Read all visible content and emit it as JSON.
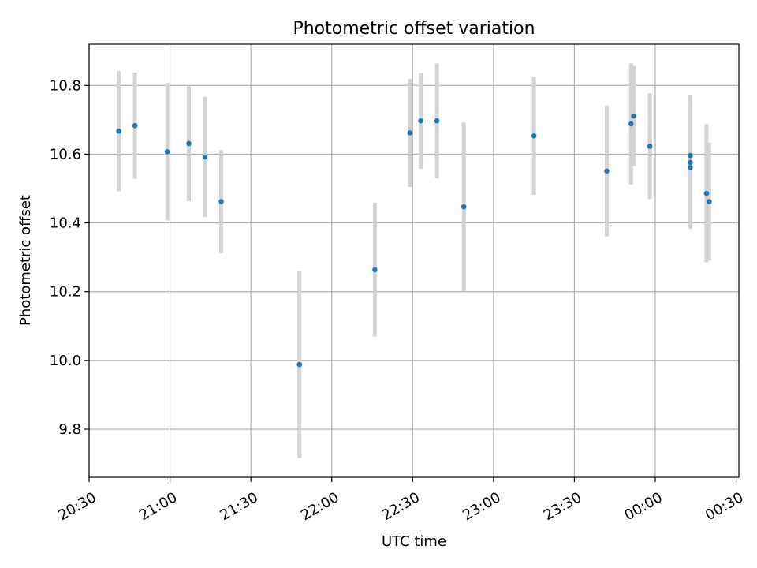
{
  "chart_data": {
    "type": "scatter",
    "title": "Photometric offset variation",
    "xlabel": "UTC time",
    "ylabel": "Photometric offset",
    "x_axis": "time",
    "x_ticks": [
      "20:30",
      "21:00",
      "21:30",
      "22:00",
      "22:30",
      "23:00",
      "23:30",
      "00:00",
      "00:30"
    ],
    "xlim": [
      "20:30",
      "00:31"
    ],
    "y_ticks": [
      "9.8",
      "10.0",
      "10.2",
      "10.4",
      "10.6",
      "10.8"
    ],
    "ylim": [
      9.66,
      10.92
    ],
    "grid": true,
    "marker_color": "#1f77b4",
    "errorbar_color": "#d3d3d3",
    "points": [
      {
        "time": "20:41",
        "y": 10.667,
        "err": 0.175
      },
      {
        "time": "20:47",
        "y": 10.683,
        "err": 0.155
      },
      {
        "time": "20:59",
        "y": 10.607,
        "err": 0.2
      },
      {
        "time": "21:07",
        "y": 10.631,
        "err": 0.168
      },
      {
        "time": "21:13",
        "y": 10.592,
        "err": 0.175
      },
      {
        "time": "21:19",
        "y": 10.462,
        "err": 0.15
      },
      {
        "time": "21:48",
        "y": 9.988,
        "err": 0.272
      },
      {
        "time": "22:16",
        "y": 10.264,
        "err": 0.195
      },
      {
        "time": "22:29",
        "y": 10.662,
        "err": 0.157
      },
      {
        "time": "22:33",
        "y": 10.697,
        "err": 0.139
      },
      {
        "time": "22:39",
        "y": 10.697,
        "err": 0.167
      },
      {
        "time": "22:49",
        "y": 10.447,
        "err": 0.246
      },
      {
        "time": "23:15",
        "y": 10.653,
        "err": 0.172
      },
      {
        "time": "23:42",
        "y": 10.551,
        "err": 0.19
      },
      {
        "time": "23:51",
        "y": 10.688,
        "err": 0.176
      },
      {
        "time": "23:52",
        "y": 10.711,
        "err": 0.146
      },
      {
        "time": "23:58",
        "y": 10.623,
        "err": 0.154
      },
      {
        "time": "00:13",
        "y": 10.596,
        "err": 0.177
      },
      {
        "time": "00:13",
        "y": 10.576,
        "err": 0.175
      },
      {
        "time": "00:13",
        "y": 10.561,
        "err": 0.178
      },
      {
        "time": "00:19",
        "y": 10.486,
        "err": 0.201
      },
      {
        "time": "00:20",
        "y": 10.462,
        "err": 0.171
      }
    ]
  }
}
